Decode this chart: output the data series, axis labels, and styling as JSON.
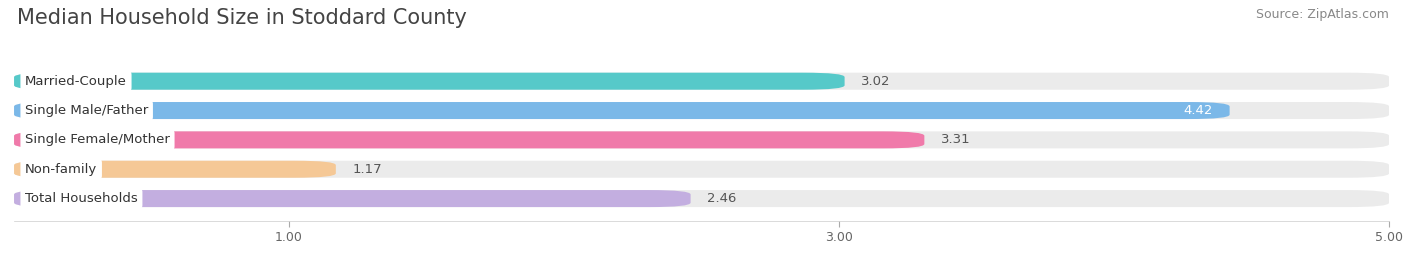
{
  "title": "Median Household Size in Stoddard County",
  "source": "Source: ZipAtlas.com",
  "categories": [
    "Married-Couple",
    "Single Male/Father",
    "Single Female/Mother",
    "Non-family",
    "Total Households"
  ],
  "values": [
    3.02,
    4.42,
    3.31,
    1.17,
    2.46
  ],
  "bar_colors": [
    "#56c9c9",
    "#7bb8e8",
    "#f07aaa",
    "#f5c896",
    "#c3aee0"
  ],
  "xmin": 0,
  "xmax": 5.0,
  "xticks": [
    1.0,
    3.0,
    5.0
  ],
  "background_color": "#ffffff",
  "bar_background_color": "#ebebeb",
  "title_fontsize": 15,
  "source_fontsize": 9,
  "label_fontsize": 9.5,
  "value_fontsize": 9.5,
  "bar_height": 0.58,
  "bar_gap": 0.42
}
